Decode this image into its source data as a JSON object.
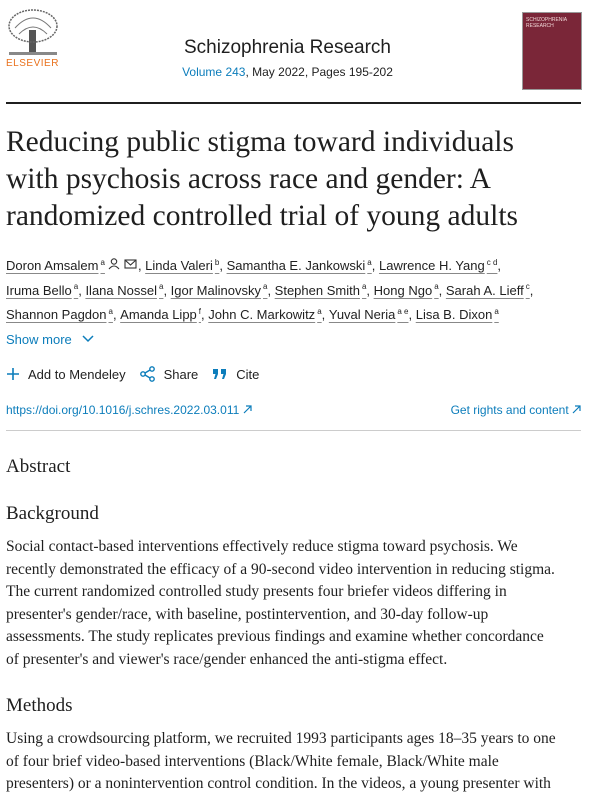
{
  "header": {
    "publisher": "ELSEVIER",
    "journal": "Schizophrenia Research",
    "volume": "Volume 243",
    "issue_info": ", May 2022, Pages 195-202",
    "cover_title": "SCHIZOPHRENIA RESEARCH"
  },
  "title_lines": [
    "Reducing public stigma toward individuals",
    "with psychosis across race and gender: A",
    "randomized controlled trial of young adults"
  ],
  "authors": [
    {
      "name": "Doron Amsalem",
      "aff": "a"
    },
    {
      "name": "Linda Valeri",
      "aff": "b"
    },
    {
      "name": "Samantha E. Jankowski",
      "aff": "a"
    },
    {
      "name": "Lawrence H. Yang",
      "aff": "c d"
    },
    {
      "name": "Iruma Bello",
      "aff": "a"
    },
    {
      "name": "Ilana Nossel",
      "aff": "a"
    },
    {
      "name": "Igor Malinovsky",
      "aff": "a"
    },
    {
      "name": "Stephen Smith",
      "aff": "a"
    },
    {
      "name": "Hong Ngo",
      "aff": "a"
    },
    {
      "name": "Sarah A. Lieff",
      "aff": "c"
    },
    {
      "name": "Shannon Pagdon",
      "aff": "a"
    },
    {
      "name": "Amanda Lipp",
      "aff": "f"
    },
    {
      "name": "John C. Markowitz",
      "aff": "a"
    },
    {
      "name": "Yuval Neria",
      "aff": "a e"
    },
    {
      "name": "Lisa B. Dixon",
      "aff": "a"
    }
  ],
  "show_more": "Show more",
  "actions": {
    "mendeley": "Add to Mendeley",
    "share": "Share",
    "cite": "Cite"
  },
  "doi": "https://doi.org/10.1016/j.schres.2022.03.011",
  "rights": "Get rights and content",
  "abstract": {
    "heading": "Abstract",
    "sections": [
      {
        "heading": "Background",
        "lines": [
          "Social contact-based interventions effectively reduce stigma toward psychosis. We",
          "recently demonstrated the efficacy of a 90-second video intervention in reducing stigma.",
          "The current randomized controlled study presents four briefer videos differing in",
          "presenter's gender/race, with baseline, postintervention, and 30-day follow-up",
          "assessments. The study replicates previous findings and examine whether concordance",
          "of presenter's and viewer's race/gender enhanced the anti-stigma effect."
        ]
      },
      {
        "heading": "Methods",
        "lines": [
          "Using a crowdsourcing platform, we recruited 1993 participants ages 18–35 years to one",
          "of four brief video-based interventions (Black/White female, Black/White male",
          "presenters) or a nonintervention control condition. In the videos, a young presenter with"
        ]
      }
    ]
  }
}
